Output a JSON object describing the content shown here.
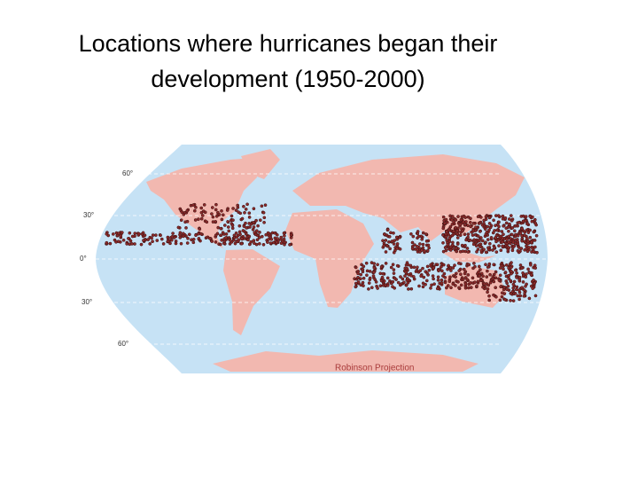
{
  "slide": {
    "title_lines": [
      "Locations where hurricanes began their",
      "development (1950-2000)"
    ]
  },
  "map": {
    "latitude_labels": [
      "60°",
      "30°",
      "0°",
      "30°",
      "60°"
    ],
    "caption": "Robinson Projection"
  }
}
